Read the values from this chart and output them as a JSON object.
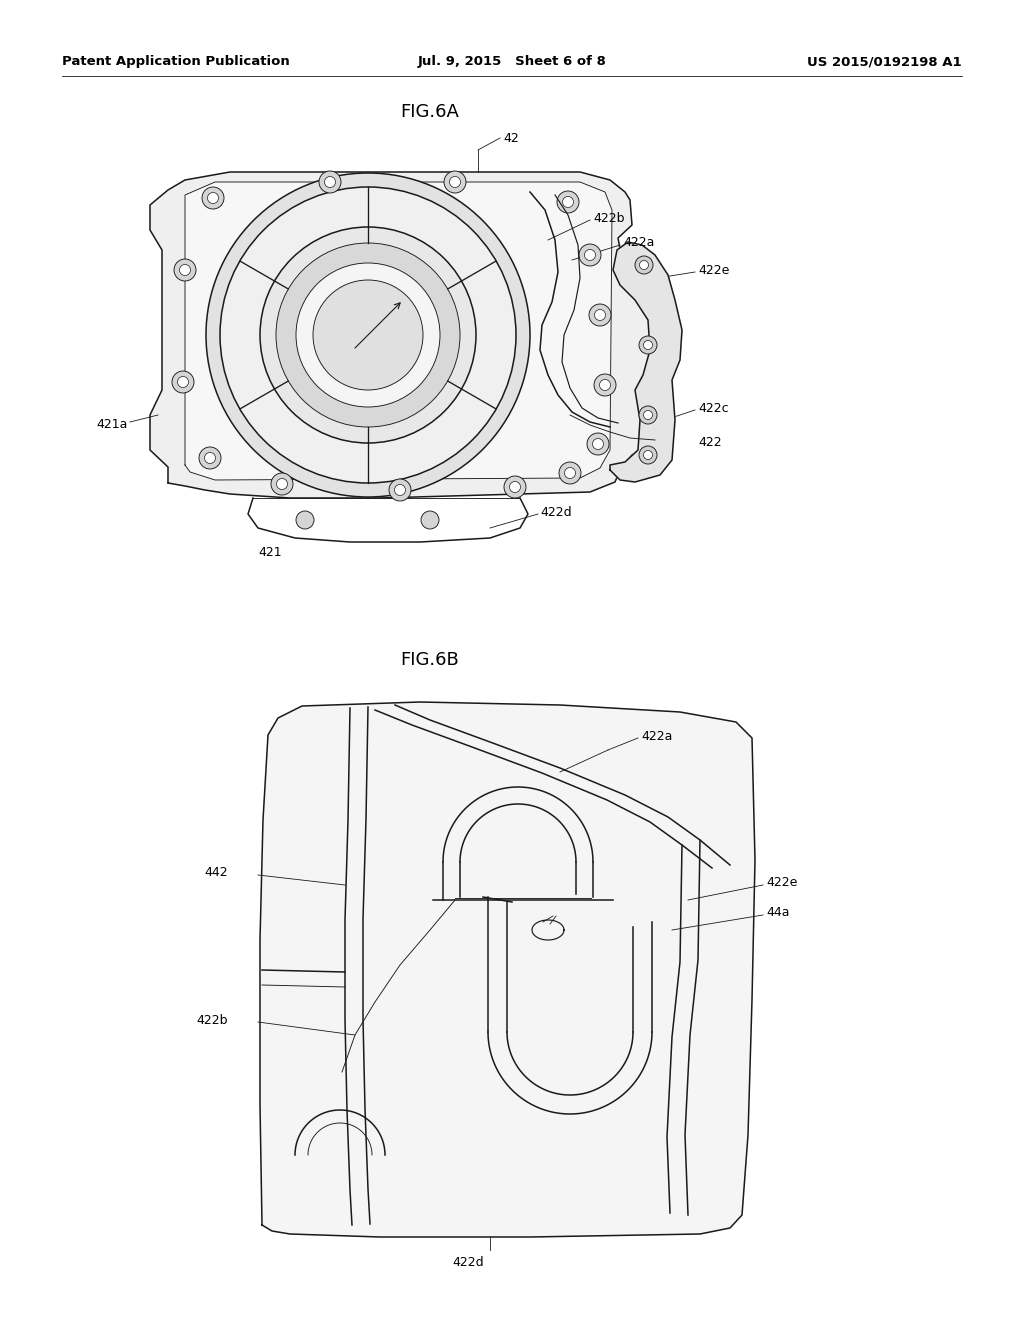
{
  "background_color": "#ffffff",
  "page_width": 10.24,
  "page_height": 13.2,
  "header": {
    "left": "Patent Application Publication",
    "center": "Jul. 9, 2015   Sheet 6 of 8",
    "right": "US 2015/0192198 A1",
    "fontsize": 9.5
  },
  "fig6a_title": "FIG.6A",
  "fig6b_title": "FIG.6B",
  "title_fontsize": 13,
  "label_fontsize": 9,
  "line_color": "#1a1a1a",
  "lw": 1.1,
  "tlw": 0.65
}
